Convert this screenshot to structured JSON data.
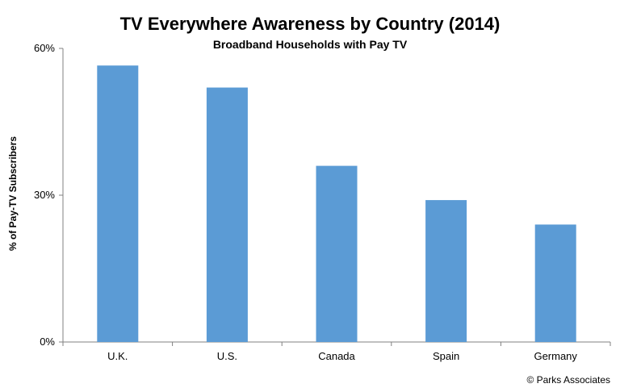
{
  "chart_data": {
    "type": "bar",
    "title": "TV Everywhere Awareness by Country (2014)",
    "subtitle": "Broadband Households with Pay TV",
    "ylabel": "% of Pay-TV Subscribers",
    "xlabel": "",
    "categories": [
      "U.K.",
      "U.S.",
      "Canada",
      "Spain",
      "Germany"
    ],
    "values": [
      56.5,
      52,
      36,
      29,
      24
    ],
    "ylim": [
      0,
      60
    ],
    "yticks": [
      0,
      30,
      60
    ],
    "ytick_labels": [
      "0%",
      "30%",
      "60%"
    ],
    "bar_color": "#5B9BD5",
    "grid": false,
    "legend": "none"
  },
  "footer": {
    "copyright": "© Parks Associates"
  }
}
